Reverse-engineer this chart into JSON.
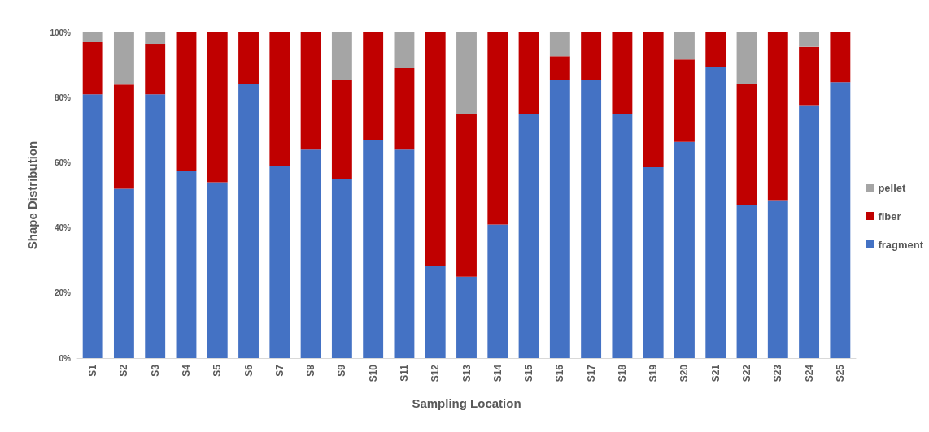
{
  "chart_data": {
    "type": "bar",
    "stacked": true,
    "xlabel": "Sampling Location",
    "ylabel": "Shape Distribution",
    "categories": [
      "S1",
      "S2",
      "S3",
      "S4",
      "S5",
      "S6",
      "S7",
      "S8",
      "S9",
      "S10",
      "S11",
      "S12",
      "S13",
      "S14",
      "S15",
      "S16",
      "S17",
      "S18",
      "S19",
      "S20",
      "S21",
      "S22",
      "S23",
      "S24",
      "S25"
    ],
    "series": [
      {
        "name": "fragment",
        "color": "#4472c4",
        "values": [
          81,
          52,
          81,
          57.6,
          54,
          84.3,
          59,
          64,
          55,
          67,
          64,
          28.3,
          25,
          41,
          75,
          85.3,
          85.3,
          75,
          58.6,
          66.4,
          89.3,
          47,
          48.5,
          77.7,
          84.7
        ]
      },
      {
        "name": "fiber",
        "color": "#c00000",
        "values": [
          16,
          32,
          15.5,
          42.4,
          46,
          15.7,
          41,
          36,
          30.5,
          33,
          25,
          71.7,
          50,
          59,
          25,
          7.4,
          14.7,
          25,
          41.4,
          25.3,
          10.7,
          37.2,
          51.5,
          17.9,
          15.3
        ]
      },
      {
        "name": "pellet",
        "color": "#a5a5a5",
        "values": [
          3,
          16,
          3.5,
          0,
          0,
          0,
          0,
          0,
          14.5,
          0,
          11,
          0,
          25,
          0,
          0,
          7.3,
          0,
          0,
          0,
          8.3,
          0,
          15.8,
          0,
          4.4,
          0
        ]
      }
    ],
    "ylim": [
      0,
      100
    ],
    "yticks": [
      {
        "value": 0,
        "label": "0%"
      },
      {
        "value": 20,
        "label": "20%"
      },
      {
        "value": 40,
        "label": "40%"
      },
      {
        "value": 60,
        "label": "60%"
      },
      {
        "value": 80,
        "label": "80%"
      },
      {
        "value": 100,
        "label": "100%"
      }
    ],
    "grid": false,
    "legend": "right"
  }
}
